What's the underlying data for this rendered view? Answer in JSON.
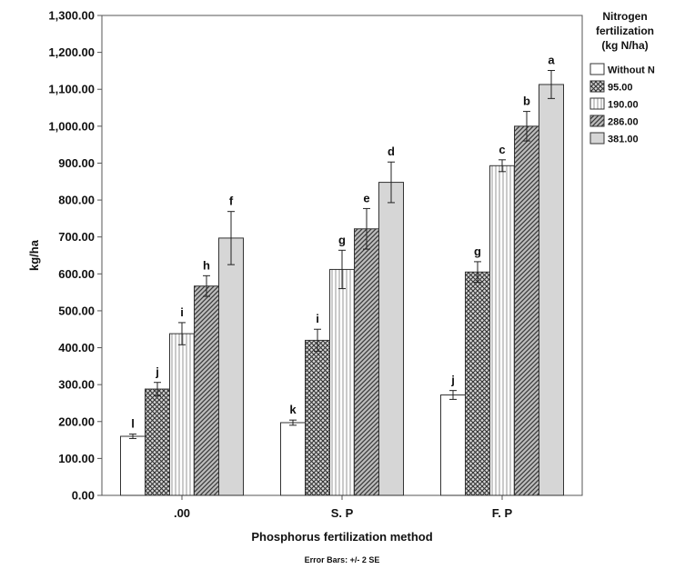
{
  "chart_data": {
    "type": "bar",
    "xlabel": "Phosphorus fertilization method",
    "ylabel": "kg/ha",
    "ylim": [
      0,
      1300
    ],
    "yticks": [
      "0.00",
      "100.00",
      "200.00",
      "300.00",
      "400.00",
      "500.00",
      "600.00",
      "700.00",
      "800.00",
      "900.00",
      "1,000.00",
      "1,100.00",
      "1,200.00",
      "1,300.00"
    ],
    "categories": [
      ".00",
      "S. P",
      "F. P"
    ],
    "legend": {
      "title_lines": [
        "Nitrogen",
        "fertilization",
        "(kg N/ha)"
      ],
      "placement": "right"
    },
    "series": [
      {
        "name": "Without N",
        "values": [
          160,
          197,
          272
        ],
        "errors": [
          6,
          7,
          12
        ],
        "letters": [
          "l",
          "k",
          "j"
        ],
        "pattern": "white"
      },
      {
        "name": "95.00",
        "values": [
          288,
          420,
          605
        ],
        "errors": [
          18,
          30,
          28
        ],
        "letters": [
          "j",
          "i",
          "g"
        ],
        "pattern": "crosshatch"
      },
      {
        "name": "190.00",
        "values": [
          438,
          612,
          893
        ],
        "errors": [
          30,
          52,
          16
        ],
        "letters": [
          "i",
          "g",
          "c"
        ],
        "pattern": "vlines"
      },
      {
        "name": "286.00",
        "values": [
          567,
          722,
          1000
        ],
        "errors": [
          28,
          55,
          40
        ],
        "letters": [
          "h",
          "e",
          "b"
        ],
        "pattern": "diag"
      },
      {
        "name": "381.00",
        "values": [
          697,
          848,
          1113
        ],
        "errors": [
          72,
          55,
          38
        ],
        "letters": [
          "f",
          "d",
          "a"
        ],
        "pattern": "gray"
      }
    ],
    "grid": false,
    "footnote": "Error Bars: +/- 2 SE"
  }
}
